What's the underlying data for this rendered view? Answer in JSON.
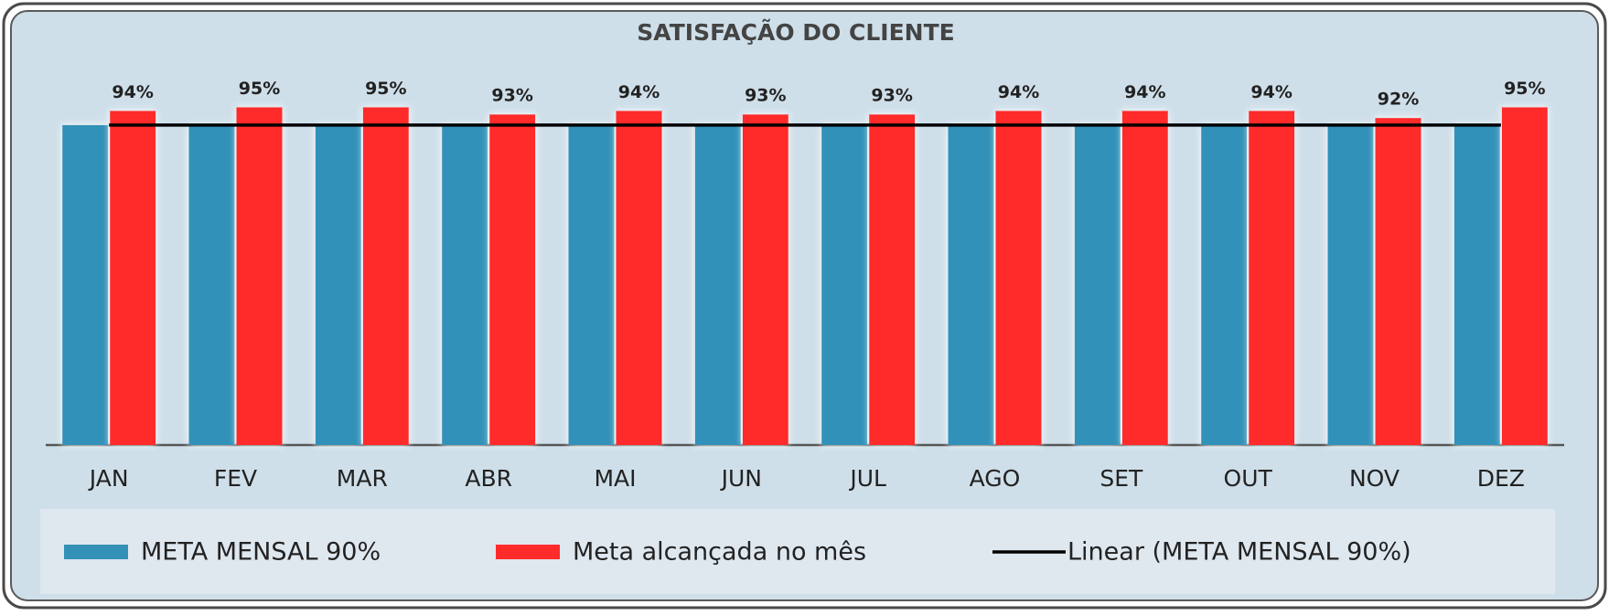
{
  "chart_data": {
    "type": "bar",
    "title": "SATISFAÇÃO DO CLIENTE",
    "categories": [
      "JAN",
      "FEV",
      "MAR",
      "ABR",
      "MAI",
      "JUN",
      "JUL",
      "AGO",
      "SET",
      "OUT",
      "NOV",
      "DEZ"
    ],
    "series": [
      {
        "name": "META MENSAL 90%",
        "color": "#3391b8",
        "values": [
          90,
          90,
          90,
          90,
          90,
          90,
          90,
          90,
          90,
          90,
          90,
          90
        ]
      },
      {
        "name": "Meta alcançada no mês",
        "color": "#ff2a2a",
        "values": [
          94,
          95,
          95,
          93,
          94,
          93,
          93,
          94,
          94,
          94,
          92,
          95
        ],
        "value_labels": [
          "94%",
          "95%",
          "95%",
          "93%",
          "94%",
          "93%",
          "93%",
          "94%",
          "94%",
          "94%",
          "92%",
          "95%"
        ]
      },
      {
        "name": "Linear (META MENSAL 90%)",
        "color": "#000000",
        "type": "line",
        "values": [
          90,
          90,
          90,
          90,
          90,
          90,
          90,
          90,
          90,
          90,
          90,
          90
        ]
      }
    ],
    "ylim": [
      0,
      100
    ],
    "legend": "bottom"
  }
}
